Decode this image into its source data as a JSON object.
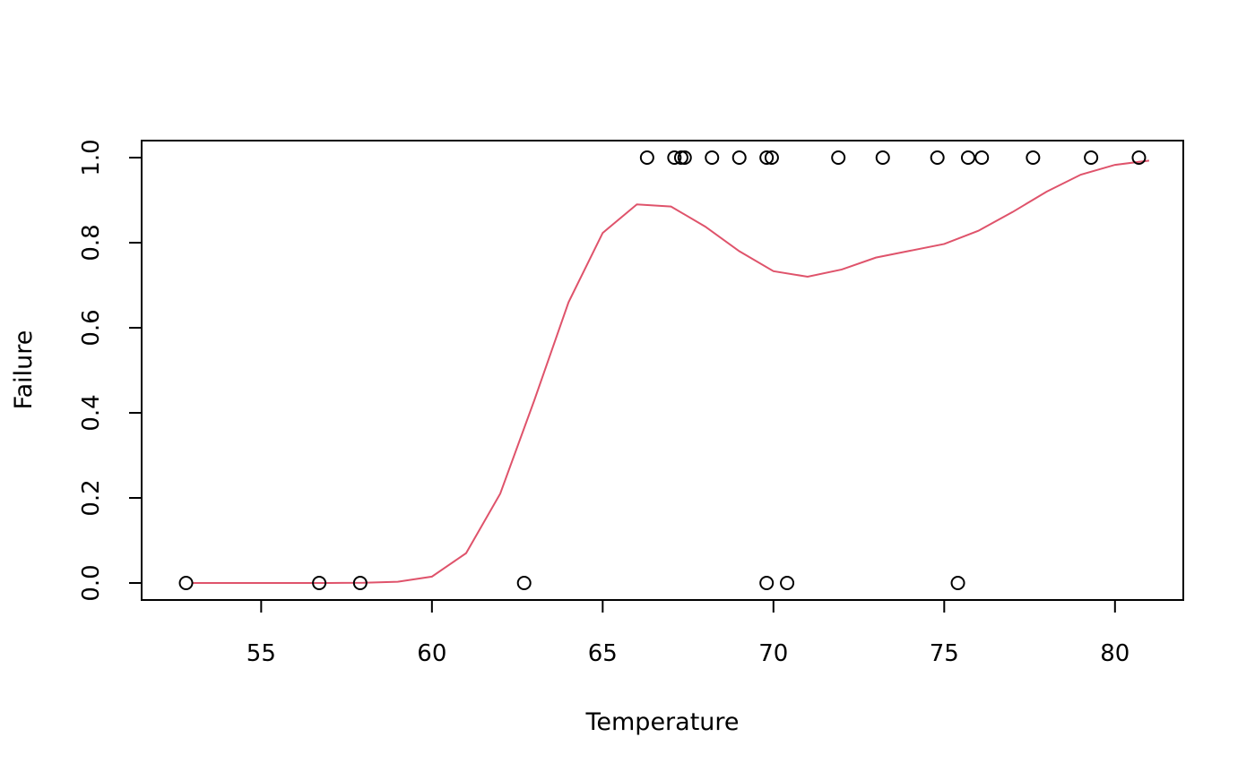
{
  "chart_data": {
    "type": "scatter",
    "title": "",
    "xlabel": "Temperature",
    "ylabel": "Failure",
    "xlim": [
      51.5,
      82
    ],
    "ylim": [
      -0.04,
      1.04
    ],
    "x_ticks": [
      55,
      60,
      65,
      70,
      75,
      80
    ],
    "x_tick_labels": [
      "55",
      "60",
      "65",
      "70",
      "75",
      "80"
    ],
    "y_ticks": [
      0,
      0.2,
      0.4,
      0.6,
      0.8,
      1
    ],
    "y_tick_labels": [
      "0.0",
      "0.2",
      "0.4",
      "0.6",
      "0.8",
      "1.0"
    ],
    "grid": false,
    "legend": "none",
    "series": [
      {
        "kind": "points",
        "marker": "open-circle",
        "color": "#000000",
        "points": [
          [
            52.8,
            0
          ],
          [
            56.7,
            0
          ],
          [
            57.9,
            0
          ],
          [
            62.7,
            0
          ],
          [
            69.8,
            0
          ],
          [
            70.4,
            0
          ],
          [
            75.4,
            0
          ],
          [
            66.3,
            1
          ],
          [
            67.1,
            1
          ],
          [
            67.3,
            1
          ],
          [
            67.4,
            1
          ],
          [
            68.2,
            1
          ],
          [
            69.0,
            1
          ],
          [
            69.8,
            1
          ],
          [
            69.95,
            1
          ],
          [
            71.9,
            1
          ],
          [
            73.2,
            1
          ],
          [
            74.8,
            1
          ],
          [
            75.7,
            1
          ],
          [
            76.1,
            1
          ],
          [
            77.6,
            1
          ],
          [
            79.3,
            1
          ],
          [
            80.7,
            1
          ]
        ]
      },
      {
        "kind": "line",
        "color": "#DF536B",
        "points": [
          [
            53,
            0
          ],
          [
            54,
            0
          ],
          [
            55,
            0
          ],
          [
            56,
            0
          ],
          [
            57,
            0
          ],
          [
            58,
            0.0005
          ],
          [
            59,
            0.003
          ],
          [
            60,
            0.015
          ],
          [
            61,
            0.07
          ],
          [
            62,
            0.21
          ],
          [
            63,
            0.43
          ],
          [
            64,
            0.66
          ],
          [
            65,
            0.823
          ],
          [
            66,
            0.89
          ],
          [
            67,
            0.885
          ],
          [
            68,
            0.838
          ],
          [
            69,
            0.78
          ],
          [
            70,
            0.733
          ],
          [
            71,
            0.72
          ],
          [
            72,
            0.737
          ],
          [
            73,
            0.765
          ],
          [
            74,
            0.781
          ],
          [
            75,
            0.797
          ],
          [
            76,
            0.828
          ],
          [
            77,
            0.872
          ],
          [
            78,
            0.92
          ],
          [
            79,
            0.96
          ],
          [
            80,
            0.983
          ],
          [
            81,
            0.993
          ]
        ]
      }
    ]
  }
}
